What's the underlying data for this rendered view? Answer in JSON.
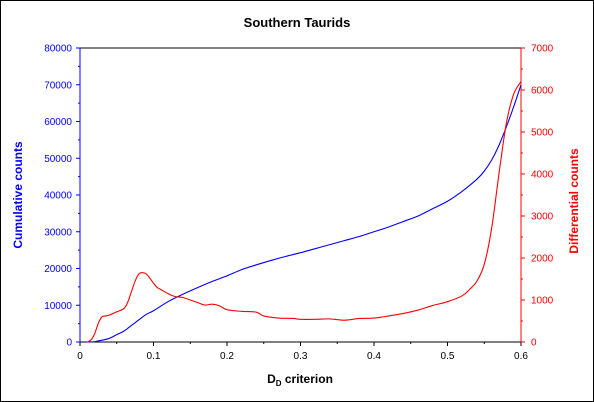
{
  "chart_data": {
    "type": "line",
    "title": "Southern Taurids",
    "xlabel_main": "D",
    "xlabel_sub": "D",
    "xlabel_rest": " criterion",
    "ylabel_left": "Cumulative counts",
    "ylabel_right": "Differential counts",
    "xlim": [
      0,
      0.6
    ],
    "ylim_left": [
      0,
      80000
    ],
    "ylim_right": [
      0,
      7000
    ],
    "x_ticks": [
      "0",
      "0.1",
      "0.2",
      "0.3",
      "0.4",
      "0.5",
      "0.6"
    ],
    "y_left_ticks": [
      "0",
      "10000",
      "20000",
      "30000",
      "40000",
      "50000",
      "60000",
      "70000",
      "80000"
    ],
    "y_right_ticks": [
      "0",
      "1000",
      "2000",
      "3000",
      "4000",
      "5000",
      "6000",
      "7000"
    ],
    "grid": false,
    "colors": {
      "cumulative": "#0000ff",
      "differential": "#ff0000",
      "frame": "#000000"
    },
    "series": [
      {
        "axis": "left",
        "color": "#0000ff",
        "x": [
          0.01,
          0.02,
          0.03,
          0.04,
          0.05,
          0.06,
          0.07,
          0.08,
          0.09,
          0.1,
          0.12,
          0.14,
          0.16,
          0.18,
          0.2,
          0.22,
          0.24,
          0.26,
          0.28,
          0.3,
          0.32,
          0.34,
          0.36,
          0.38,
          0.4,
          0.42,
          0.44,
          0.46,
          0.48,
          0.5,
          0.52,
          0.54,
          0.55,
          0.56,
          0.57,
          0.58,
          0.59,
          0.6
        ],
        "values": [
          0,
          100,
          500,
          1000,
          2000,
          3000,
          4500,
          6000,
          7500,
          8500,
          11000,
          13000,
          14800,
          16500,
          18000,
          19700,
          21000,
          22200,
          23300,
          24300,
          25400,
          26500,
          27600,
          28700,
          30000,
          31300,
          32800,
          34300,
          36300,
          38300,
          41000,
          44300,
          46500,
          49500,
          53500,
          58500,
          64000,
          70000
        ]
      },
      {
        "axis": "right",
        "color": "#ff0000",
        "x": [
          0.01,
          0.015,
          0.02,
          0.025,
          0.03,
          0.035,
          0.04,
          0.045,
          0.05,
          0.06,
          0.065,
          0.07,
          0.075,
          0.08,
          0.085,
          0.09,
          0.095,
          0.1,
          0.105,
          0.11,
          0.12,
          0.13,
          0.14,
          0.15,
          0.16,
          0.17,
          0.18,
          0.19,
          0.2,
          0.22,
          0.24,
          0.25,
          0.27,
          0.29,
          0.3,
          0.32,
          0.34,
          0.36,
          0.38,
          0.4,
          0.42,
          0.44,
          0.46,
          0.48,
          0.5,
          0.52,
          0.53,
          0.54,
          0.55,
          0.56,
          0.57,
          0.58,
          0.59,
          0.6
        ],
        "values": [
          0,
          50,
          200,
          450,
          600,
          620,
          640,
          680,
          720,
          800,
          950,
          1200,
          1450,
          1620,
          1650,
          1620,
          1520,
          1400,
          1300,
          1250,
          1150,
          1080,
          1060,
          1000,
          940,
          880,
          900,
          860,
          770,
          730,
          710,
          620,
          570,
          560,
          540,
          540,
          550,
          520,
          560,
          570,
          620,
          680,
          760,
          870,
          960,
          1100,
          1250,
          1450,
          1850,
          2700,
          4000,
          5200,
          5900,
          6200
        ]
      }
    ]
  }
}
